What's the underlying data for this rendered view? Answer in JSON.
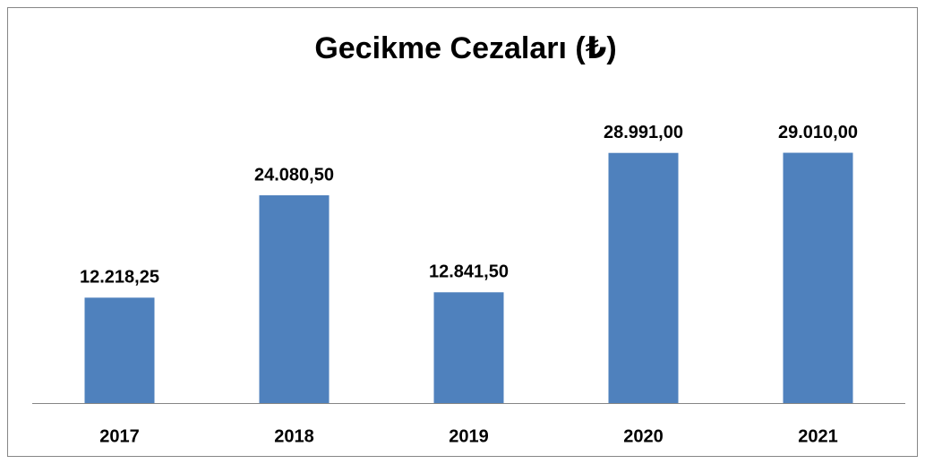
{
  "chart_data": {
    "type": "bar",
    "title": "Gecikme Cezaları (₺)",
    "categories": [
      "2017",
      "2018",
      "2019",
      "2020",
      "2021"
    ],
    "values": [
      12218.25,
      24080.5,
      12841.5,
      28991,
      29010
    ],
    "value_labels": [
      "12.218,25",
      "24.080,50",
      "12.841,50",
      "28.991,00",
      "29.010,00"
    ],
    "color": "#4f81bd",
    "ylim": [
      0,
      30000
    ]
  }
}
